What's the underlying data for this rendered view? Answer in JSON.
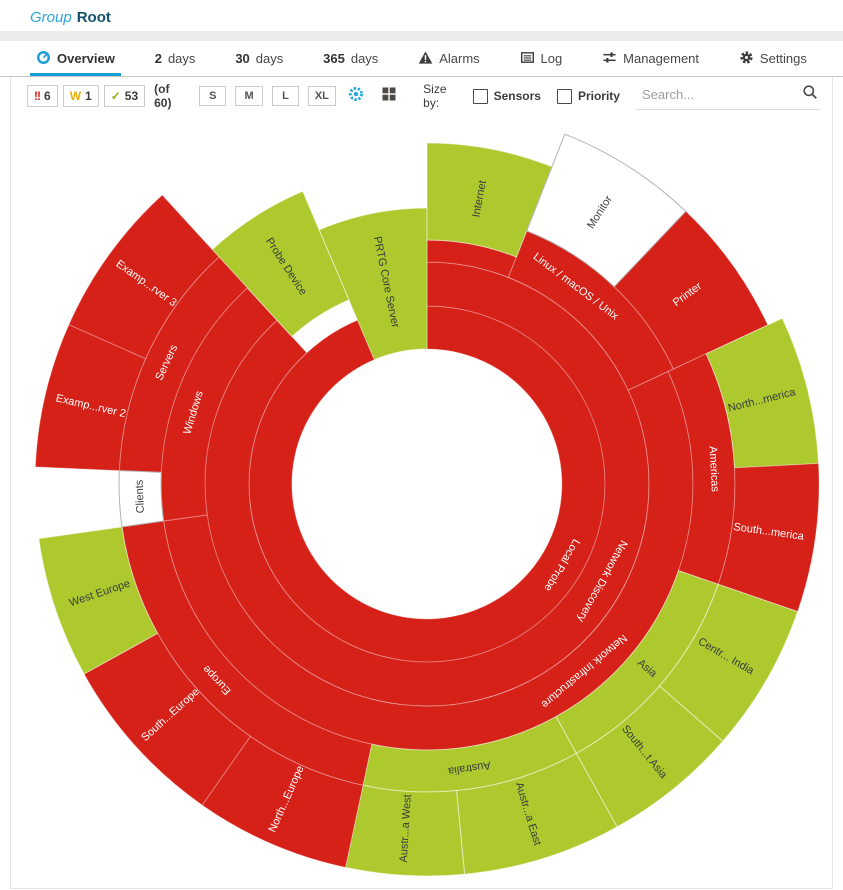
{
  "header": {
    "type_label": "Group",
    "name": "Root"
  },
  "tabs": {
    "overview": {
      "label": "Overview"
    },
    "days2": {
      "num": "2",
      "unit": "days"
    },
    "days30": {
      "num": "30",
      "unit": "days"
    },
    "days365": {
      "num": "365",
      "unit": "days"
    },
    "alarms": {
      "label": "Alarms"
    },
    "log": {
      "label": "Log"
    },
    "management": {
      "label": "Management"
    },
    "settings": {
      "label": "Settings"
    }
  },
  "toolbar": {
    "error_glyph": "!!",
    "error_count": "6",
    "warning_glyph": "W",
    "warning_count": "1",
    "ok_glyph": "✓",
    "ok_count": "53",
    "total_label": "(of 60)",
    "sizes": [
      "S",
      "M",
      "L",
      "XL"
    ],
    "size_by_label": "Size by:",
    "checkboxes": [
      {
        "label": "Sensors",
        "checked": false
      },
      {
        "label": "Priority",
        "checked": false
      }
    ],
    "search_placeholder": "Search..."
  },
  "colors": {
    "accent_blue": "#1a9fd4",
    "status_down_red": "#d62119",
    "status_up_green": "#adc92d",
    "status_unknown_white": "#ffffff"
  },
  "chart_data": {
    "type": "sunburst",
    "center": [
      416,
      369
    ],
    "hole_radius": 135,
    "status_colors": {
      "down": "#d62119",
      "up": "#adc92d",
      "unknown": "#ffffff"
    },
    "segments": [
      {
        "id": "local-probe",
        "label": "Local Probe",
        "status": "down",
        "a0": 0,
        "a1": 338,
        "r0": 135,
        "r1": 178,
        "mode": "tangent",
        "la": 121,
        "lr": 157
      },
      {
        "id": "network-discovery",
        "label": "Network Discovery",
        "status": "down",
        "a0": 0,
        "a1": 317.5,
        "r0": 178,
        "r1": 222,
        "mode": "tangent",
        "la": 119,
        "lr": 200
      },
      {
        "id": "internet-base",
        "label": "",
        "status": "down",
        "a0": 0,
        "a1": 21.5,
        "r0": 222,
        "r1": 244,
        "mode": "tangent",
        "la": 10,
        "lr": 233
      },
      {
        "id": "linux-macos-unix",
        "label": "Linux / macOS / Unix",
        "status": "down",
        "a0": 21.5,
        "a1": 65,
        "r0": 222,
        "r1": 272,
        "mode": "tangent",
        "la": 37,
        "lr": 247
      },
      {
        "id": "network-infrastructure",
        "label": "Network Infrastructure",
        "status": "down",
        "a0": 65,
        "a1": 262,
        "r0": 222,
        "r1": 266,
        "mode": "tangent",
        "la": 140,
        "lr": 244
      },
      {
        "id": "windows",
        "label": "Windows",
        "status": "down",
        "a0": 262,
        "a1": 317.5,
        "r0": 222,
        "r1": 266,
        "mode": "tangent",
        "la": 287,
        "lr": 244
      },
      {
        "id": "prtg-core-server",
        "label": "PRTG Core Server",
        "status": "up",
        "a0": 337,
        "a1": 360,
        "r0": 135,
        "r1": 276,
        "mode": "radial",
        "la": 348.5,
        "lr": 206
      },
      {
        "id": "probe-device",
        "label": "Probe Device",
        "status": "up",
        "a0": 317.5,
        "a1": 337,
        "r0": 200,
        "r1": 318,
        "mode": "radial",
        "la": 327,
        "lr": 259
      },
      {
        "id": "internet",
        "label": "Internet",
        "status": "up",
        "a0": 0,
        "a1": 21.5,
        "r0": 244,
        "r1": 341,
        "mode": "radial",
        "la": 10.5,
        "lr": 290
      },
      {
        "id": "monitor",
        "label": "Monitor",
        "status": "unknown",
        "a0": 21.5,
        "a1": 43.5,
        "r0": 272,
        "r1": 376,
        "mode": "radial",
        "la": 32.5,
        "lr": 322
      },
      {
        "id": "printer",
        "label": "Printer",
        "status": "down",
        "a0": 43.5,
        "a1": 65,
        "r0": 272,
        "r1": 376,
        "mode": "radial",
        "la": 54,
        "lr": 322
      },
      {
        "id": "americas",
        "label": "Americas",
        "status": "down",
        "a0": 65,
        "a1": 109,
        "r0": 266,
        "r1": 308,
        "mode": "tangent",
        "la": 87,
        "lr": 287
      },
      {
        "id": "asia",
        "label": "Asia",
        "status": "up",
        "a0": 109,
        "a1": 151,
        "r0": 266,
        "r1": 308,
        "mode": "radial",
        "la": 130,
        "lr": 287
      },
      {
        "id": "australia",
        "label": "Australia",
        "status": "up",
        "a0": 151,
        "a1": 192,
        "r0": 266,
        "r1": 308,
        "mode": "tangent",
        "la": 171.5,
        "lr": 287
      },
      {
        "id": "europe",
        "label": "Europe",
        "status": "down",
        "a0": 192,
        "a1": 262,
        "r0": 266,
        "r1": 308,
        "mode": "tangent",
        "la": 227,
        "lr": 287
      },
      {
        "id": "clients",
        "label": "Clients",
        "status": "unknown",
        "a0": 262,
        "a1": 272.5,
        "r0": 266,
        "r1": 308,
        "mode": "tangent",
        "la": 267.5,
        "lr": 287
      },
      {
        "id": "servers",
        "label": "Servers",
        "status": "down",
        "a0": 272.5,
        "a1": 317.5,
        "r0": 266,
        "r1": 308,
        "mode": "tangent",
        "la": 295,
        "lr": 287
      },
      {
        "id": "north-america",
        "label": "North...merica",
        "status": "up",
        "a0": 65,
        "a1": 87,
        "r0": 308,
        "r1": 392,
        "mode": "radial",
        "la": 76,
        "lr": 345
      },
      {
        "id": "south-america",
        "label": "South...merica",
        "status": "down",
        "a0": 87,
        "a1": 109,
        "r0": 308,
        "r1": 392,
        "mode": "radial",
        "la": 98,
        "lr": 345
      },
      {
        "id": "central-india",
        "label": "Centr... India",
        "status": "up",
        "a0": 109,
        "a1": 131,
        "r0": 308,
        "r1": 392,
        "mode": "radial",
        "la": 120,
        "lr": 345
      },
      {
        "id": "south-east-asia",
        "label": "South...t Asia",
        "status": "up",
        "a0": 131,
        "a1": 151,
        "r0": 308,
        "r1": 392,
        "mode": "radial",
        "la": 141,
        "lr": 345
      },
      {
        "id": "australia-east",
        "label": "Austr...a East",
        "status": "up",
        "a0": 151,
        "a1": 174.5,
        "r0": 308,
        "r1": 392,
        "mode": "radial",
        "la": 163,
        "lr": 345
      },
      {
        "id": "australia-west",
        "label": "Austr...a West",
        "status": "up",
        "a0": 174.5,
        "a1": 192,
        "r0": 308,
        "r1": 392,
        "mode": "radial",
        "la": 183.5,
        "lr": 345
      },
      {
        "id": "north-europe",
        "label": "North...Europe",
        "status": "down",
        "a0": 192,
        "a1": 215,
        "r0": 308,
        "r1": 392,
        "mode": "radial",
        "la": 204,
        "lr": 345
      },
      {
        "id": "south-europe",
        "label": "South...Europe",
        "status": "down",
        "a0": 215,
        "a1": 241,
        "r0": 308,
        "r1": 392,
        "mode": "radial",
        "la": 228,
        "lr": 345
      },
      {
        "id": "west-europe",
        "label": "West Europe",
        "status": "up",
        "a0": 241,
        "a1": 262,
        "r0": 308,
        "r1": 392,
        "mode": "radial",
        "la": 251.5,
        "lr": 345
      },
      {
        "id": "example-server-2",
        "label": "Examp...rver 2",
        "status": "down",
        "a0": 272.5,
        "a1": 294,
        "r0": 308,
        "r1": 392,
        "mode": "radial",
        "la": 283,
        "lr": 345
      },
      {
        "id": "example-server-3",
        "label": "Examp...rver 3",
        "status": "down",
        "a0": 294,
        "a1": 317.5,
        "r0": 308,
        "r1": 392,
        "mode": "radial",
        "la": 305.5,
        "lr": 345
      }
    ]
  }
}
